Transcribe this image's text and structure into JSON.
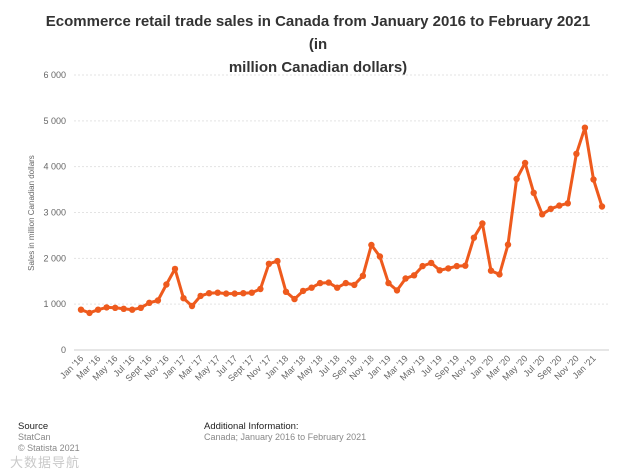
{
  "chart_data": {
    "type": "line",
    "title_line1": "Ecommerce retail trade sales in Canada from January 2016 to February 2021 (in",
    "title_line2": "million Canadian dollars)",
    "ylabel": "Sales in million Canadian dollars",
    "ylim": [
      0,
      6000
    ],
    "yticks": [
      0,
      1000,
      2000,
      3000,
      4000,
      5000,
      6000
    ],
    "ytick_labels": [
      "0",
      "1 000",
      "2 000",
      "3 000",
      "4 000",
      "5 000",
      "6 000"
    ],
    "xtick_labels": [
      "Jan '16",
      "Mar '16",
      "May '16",
      "Jul '16",
      "Sept '16",
      "Nov '16",
      "Jan '17",
      "Mar '17",
      "May '17",
      "Jul '17",
      "Sept '17",
      "Nov '17",
      "Jan '18",
      "Mar '18",
      "May '18",
      "Jul '18",
      "Sep '18",
      "Nov '18",
      "Jan '19",
      "Mar '19",
      "May '19",
      "Jul '19",
      "Sep '19",
      "Nov '19",
      "Jan '20",
      "Mar '20",
      "May '20",
      "Jul '20",
      "Sep '20",
      "Nov '20",
      "Jan '21"
    ],
    "color": "#ee5a1d",
    "grid": true,
    "series": [
      {
        "name": "Ecommerce retail trade sales",
        "values": [
          880,
          810,
          880,
          930,
          920,
          900,
          880,
          920,
          1030,
          1080,
          1430,
          1770,
          1130,
          960,
          1180,
          1240,
          1250,
          1230,
          1230,
          1240,
          1250,
          1330,
          1880,
          1940,
          1270,
          1110,
          1290,
          1360,
          1460,
          1470,
          1360,
          1460,
          1420,
          1620,
          2290,
          2040,
          1460,
          1300,
          1560,
          1630,
          1830,
          1900,
          1740,
          1780,
          1830,
          1840,
          2450,
          2760,
          1730,
          1650,
          2300,
          3730,
          4080,
          3430,
          2960,
          3080,
          3150,
          3200,
          4280,
          4850,
          3720,
          3130
        ]
      }
    ]
  },
  "footer": {
    "source_heading": "Source",
    "source_name": "StatCan",
    "copyright": "© Statista 2021",
    "additional_heading": "Additional Information:",
    "additional_text": "Canada; January 2016 to February 2021"
  },
  "watermark": "大数据导航"
}
